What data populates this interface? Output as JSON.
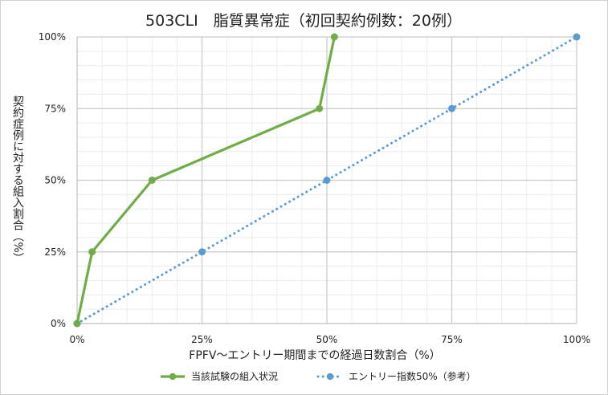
{
  "chart_data": {
    "type": "line",
    "title": "503CLI　脂質異常症（初回契約例数：20例）",
    "xlabel": "FPFV～エントリー期間までの経過日数割合（%）",
    "ylabel": "契約症例に対する組入割合（%）",
    "xlim": [
      0,
      100
    ],
    "ylim": [
      0,
      100
    ],
    "x_ticks": [
      "0%",
      "25%",
      "50%",
      "75%",
      "100%"
    ],
    "y_ticks": [
      "0%",
      "25%",
      "50%",
      "75%",
      "100%"
    ],
    "grid": true,
    "legend_position": "bottom",
    "series": [
      {
        "name": "当該試験の組入状況",
        "color": "#70ad47",
        "style": "solid",
        "points": [
          [
            0,
            0
          ],
          [
            3,
            25
          ],
          [
            15,
            50
          ],
          [
            48.5,
            75
          ],
          [
            51.5,
            100
          ]
        ]
      },
      {
        "name": "エントリー指数50%（参考）",
        "color": "#5b9bd5",
        "style": "dotted",
        "points": [
          [
            0,
            0
          ],
          [
            25,
            25
          ],
          [
            50,
            50
          ],
          [
            75,
            75
          ],
          [
            100,
            100
          ]
        ]
      }
    ]
  }
}
